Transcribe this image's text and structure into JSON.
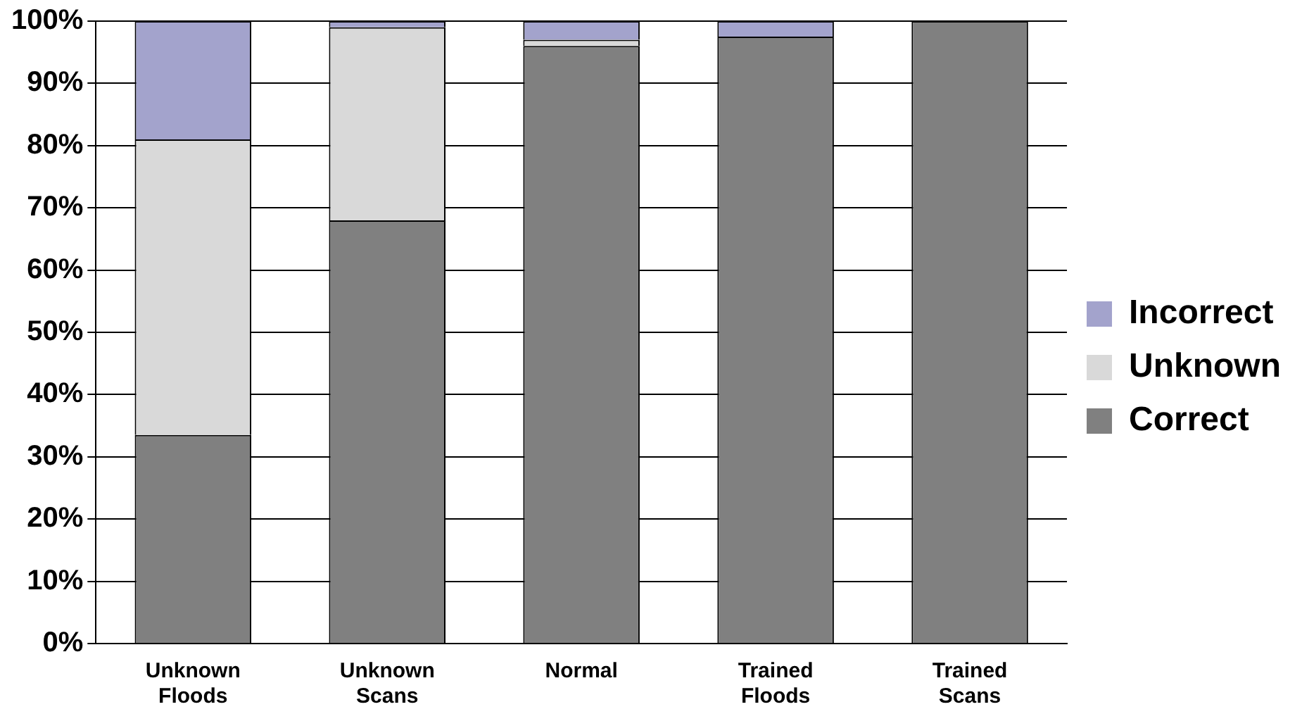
{
  "chart_data": {
    "type": "bar",
    "stacked": true,
    "categories": [
      "Unknown Floods",
      "Unknown Scans",
      "Normal",
      "Trained Floods",
      "Trained Scans"
    ],
    "series": [
      {
        "name": "Correct",
        "color": "#808080",
        "values": [
          33.5,
          68,
          96,
          97.5,
          100
        ]
      },
      {
        "name": "Unknown",
        "color": "#d9d9d9",
        "values": [
          47.5,
          31,
          1,
          0,
          0
        ]
      },
      {
        "name": "Incorrect",
        "color": "#a3a3cc",
        "values": [
          19,
          1,
          3,
          2.5,
          0
        ]
      }
    ],
    "ylim": [
      0,
      100
    ],
    "yticks": [
      {
        "value": 0,
        "label": "0%"
      },
      {
        "value": 10,
        "label": "10%"
      },
      {
        "value": 20,
        "label": "20%"
      },
      {
        "value": 30,
        "label": "30%"
      },
      {
        "value": 40,
        "label": "40%"
      },
      {
        "value": 50,
        "label": "50%"
      },
      {
        "value": 60,
        "label": "60%"
      },
      {
        "value": 70,
        "label": "70%"
      },
      {
        "value": 80,
        "label": "80%"
      },
      {
        "value": 90,
        "label": "90%"
      },
      {
        "value": 100,
        "label": "100%"
      }
    ],
    "grid": "y",
    "legend": "right"
  }
}
